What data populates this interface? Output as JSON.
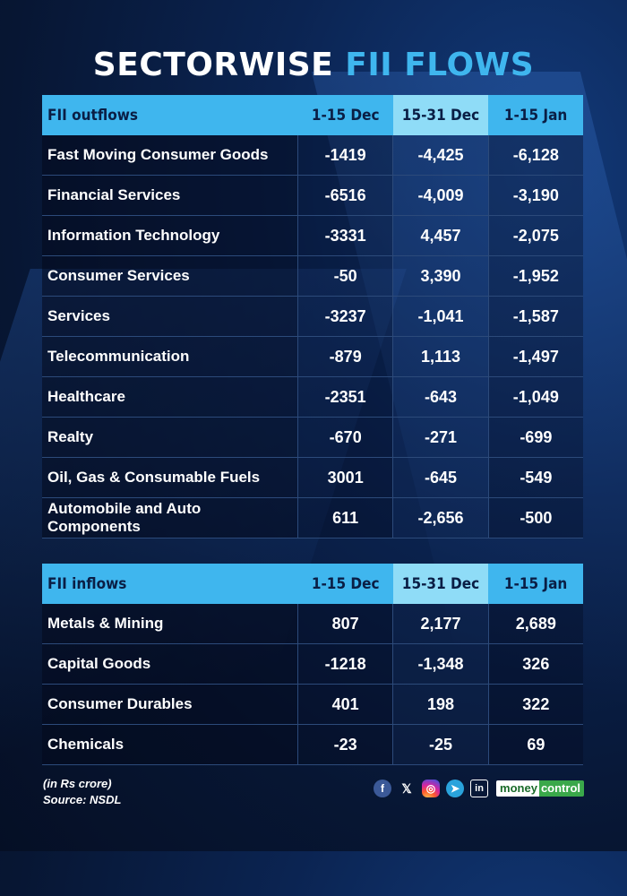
{
  "title": {
    "part1": "SECTORWISE ",
    "part2": "FII FLOWS"
  },
  "colors": {
    "accent": "#3fb6ee",
    "header_alt": "#8fdcf7",
    "background": "#071633",
    "brand_green": "#3aa84a"
  },
  "outflows": {
    "header": {
      "name": "FII outflows",
      "c1": "1-15 Dec",
      "c2": "15-31 Dec",
      "c3": "1-15 Jan"
    },
    "rows": [
      {
        "name": "Fast Moving Consumer Goods",
        "v1": "-1419",
        "v2": "-4,425",
        "v3": "-6,128"
      },
      {
        "name": "Financial Services",
        "v1": "-6516",
        "v2": "-4,009",
        "v3": "-3,190"
      },
      {
        "name": "Information Technology",
        "v1": "-3331",
        "v2": "4,457",
        "v3": "-2,075"
      },
      {
        "name": "Consumer Services",
        "v1": "-50",
        "v2": "3,390",
        "v3": "-1,952"
      },
      {
        "name": "Services",
        "v1": "-3237",
        "v2": "-1,041",
        "v3": "-1,587"
      },
      {
        "name": "Telecommunication",
        "v1": "-879",
        "v2": "1,113",
        "v3": "-1,497"
      },
      {
        "name": "Healthcare",
        "v1": "-2351",
        "v2": "-643",
        "v3": "-1,049"
      },
      {
        "name": "Realty",
        "v1": "-670",
        "v2": "-271",
        "v3": "-699"
      },
      {
        "name": "Oil, Gas & Consumable Fuels",
        "v1": "3001",
        "v2": "-645",
        "v3": "-549"
      },
      {
        "name": "Automobile and Auto Components",
        "v1": "611",
        "v2": "-2,656",
        "v3": "-500"
      }
    ]
  },
  "inflows": {
    "header": {
      "name": "FII inflows",
      "c1": "1-15 Dec",
      "c2": "15-31 Dec",
      "c3": "1-15 Jan"
    },
    "rows": [
      {
        "name": "Metals & Mining",
        "v1": "807",
        "v2": "2,177",
        "v3": "2,689"
      },
      {
        "name": "Capital Goods",
        "v1": "-1218",
        "v2": "-1,348",
        "v3": "326"
      },
      {
        "name": "Consumer Durables",
        "v1": "401",
        "v2": "198",
        "v3": "322"
      },
      {
        "name": "Chemicals",
        "v1": "-23",
        "v2": "-25",
        "v3": "69"
      }
    ]
  },
  "footer": {
    "unit": "(in Rs crore)",
    "source": "Source: NSDL"
  },
  "social": {
    "icons": [
      "facebook-icon",
      "x-icon",
      "instagram-icon",
      "telegram-icon",
      "linkedin-icon"
    ],
    "glyphs": {
      "facebook": "f",
      "x": "𝕏",
      "instagram": "◎",
      "telegram": "➤",
      "linkedin": "in"
    },
    "brand_part1": "money",
    "brand_part2": "control"
  },
  "chart_data": {
    "type": "table",
    "title": "SECTORWISE FII FLOWS",
    "columns": [
      "1-15 Dec",
      "15-31 Dec",
      "1-15 Jan"
    ],
    "unit": "(in Rs crore)",
    "tables": [
      {
        "name": "FII outflows",
        "rows": [
          {
            "sector": "Fast Moving Consumer Goods",
            "values": [
              -1419,
              -4425,
              -6128
            ]
          },
          {
            "sector": "Financial Services",
            "values": [
              -6516,
              -4009,
              -3190
            ]
          },
          {
            "sector": "Information Technology",
            "values": [
              -3331,
              4457,
              -2075
            ]
          },
          {
            "sector": "Consumer Services",
            "values": [
              -50,
              3390,
              -1952
            ]
          },
          {
            "sector": "Services",
            "values": [
              -3237,
              -1041,
              -1587
            ]
          },
          {
            "sector": "Telecommunication",
            "values": [
              -879,
              1113,
              -1497
            ]
          },
          {
            "sector": "Healthcare",
            "values": [
              -2351,
              -643,
              -1049
            ]
          },
          {
            "sector": "Realty",
            "values": [
              -670,
              -271,
              -699
            ]
          },
          {
            "sector": "Oil, Gas & Consumable Fuels",
            "values": [
              3001,
              -645,
              -549
            ]
          },
          {
            "sector": "Automobile and Auto Components",
            "values": [
              611,
              -2656,
              -500
            ]
          }
        ]
      },
      {
        "name": "FII inflows",
        "rows": [
          {
            "sector": "Metals & Mining",
            "values": [
              807,
              2177,
              2689
            ]
          },
          {
            "sector": "Capital Goods",
            "values": [
              -1218,
              -1348,
              326
            ]
          },
          {
            "sector": "Consumer Durables",
            "values": [
              401,
              198,
              322
            ]
          },
          {
            "sector": "Chemicals",
            "values": [
              -23,
              -25,
              69
            ]
          }
        ]
      }
    ],
    "source": "Source: NSDL"
  }
}
